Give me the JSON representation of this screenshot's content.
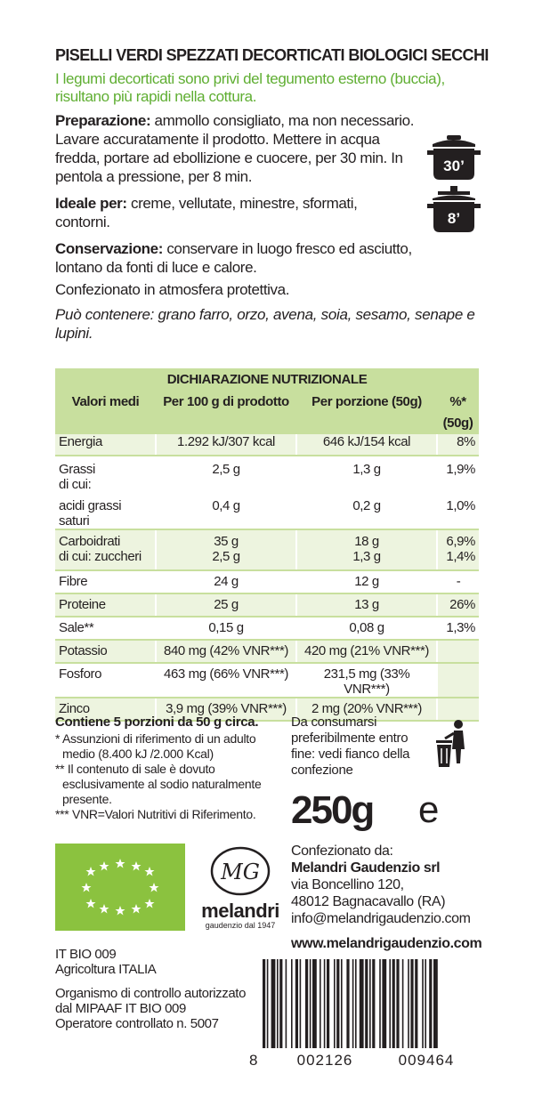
{
  "title": "PISELLI VERDI SPEZZATI DECORTICATI BIOLOGICI SECCHI",
  "intro": "I legumi decorticati sono privi del tegumento esterno (buccia), risultano più rapidi nella cottura.",
  "preparation": {
    "label": "Preparazione:",
    "text": " ammollo consigliato, ma non necessario. Lavare accuratamente il prodotto. Mettere in acqua fredda, portare ad ebollizione e cuocere, per 30 min. In pentola a pressione, per 8 min."
  },
  "ideal": {
    "label": "Ideale per:",
    "text": " creme, vellutate, minestre, sformati, contorni."
  },
  "storage": {
    "label": "Conservazione:",
    "text": " conservare in luogo fresco ed asciutto, lontano da fonti di luce e calore."
  },
  "packaging": "Confezionato in atmosfera protettiva.",
  "allergens": "Può contenere: grano farro, orzo, avena, soia, sesamo, senape e lupini.",
  "cooking_icons": {
    "pot_time": "30’",
    "pressure_time": "8’",
    "pot_icon": "cooking-pot-icon",
    "pressure_icon": "pressure-cooker-icon"
  },
  "nutrition": {
    "title": "DICHIARAZIONE NUTRIZIONALE",
    "headers": [
      "Valori medi",
      "Per 100 g di prodotto",
      "Per porzione (50g)",
      "%*(50g)"
    ],
    "rows": {
      "energia": [
        "Energia",
        "1.292 kJ/307 kcal",
        "646 kJ/154 kcal",
        "8%"
      ],
      "grassi": [
        "Grassi",
        "2,5 g",
        "1,3 g",
        "1,9%"
      ],
      "dicui": "di cui:",
      "saturi": [
        "acidi grassi saturi",
        "0,4 g",
        "0,2 g",
        "1,0%"
      ],
      "carbo": [
        "Carboidrati",
        "35 g",
        "18 g",
        "6,9%"
      ],
      "zuccheri": [
        "di cui: zuccheri",
        "2,5 g",
        "1,3 g",
        "1,4%"
      ],
      "fibre": [
        "Fibre",
        "24 g",
        "12 g",
        "-"
      ],
      "proteine": [
        "Proteine",
        "25 g",
        "13 g",
        "26%"
      ],
      "sale": [
        "Sale**",
        "0,15 g",
        "0,08 g",
        "1,3%"
      ],
      "potassio": [
        "Potassio",
        "840 mg (42% VNR***)",
        "420 mg (21% VNR***)",
        ""
      ],
      "fosforo": [
        "Fosforo",
        "463 mg (66% VNR***)",
        "231,5 mg (33% VNR***)",
        ""
      ],
      "zinco": [
        "Zinco",
        "3,9 mg (39% VNR***)",
        "2 mg (20% VNR***)",
        ""
      ]
    }
  },
  "notes": {
    "portions": "Contiene 5 porzioni da 50 g circa.",
    "n1": "* Assunzioni di riferimento di un adulto medio (8.400 kJ /2.000 Kcal)",
    "n2": "** Il contenuto di sale è dovuto esclusivamente al sodio naturalmente presente.",
    "n3": "*** VNR=Valori Nutritivi di Riferimento."
  },
  "expiry": "Da consumarsi preferibilmente entro fine: vedi fianco della confezione",
  "weight": "250g",
  "estimated_sign": "e",
  "packer": {
    "label": "Confezionato da:",
    "company": "Melandri Gaudenzio srl",
    "street": "via Boncellino 120,",
    "city": "48012 Bagnacavallo (RA)",
    "email": "info@melandrigaudenzio.com",
    "website": "www.melandrigaudenzio.com"
  },
  "brand": {
    "monogram": "MG",
    "name": "melandri",
    "tagline": "gaudenzio dal 1947"
  },
  "certification": {
    "code": "IT BIO 009",
    "origin": "Agricoltura ITALIA",
    "body_line1": "Organismo di controllo autorizzato",
    "body_line2": "dal MIPAAF IT BIO 009",
    "operator": "Operatore controllato n. 5007"
  },
  "barcode_digits": [
    "8",
    "002126",
    "009464"
  ],
  "colors": {
    "accent_green": "#5fae32",
    "table_header": "#c8df9e",
    "table_row": "#edf4df",
    "eu_organic": "#8bc23f",
    "icon_dark": "#231f20"
  },
  "icons": {
    "organic": "eu-organic-leaf-icon",
    "disposal": "trash-bin-person-icon"
  }
}
